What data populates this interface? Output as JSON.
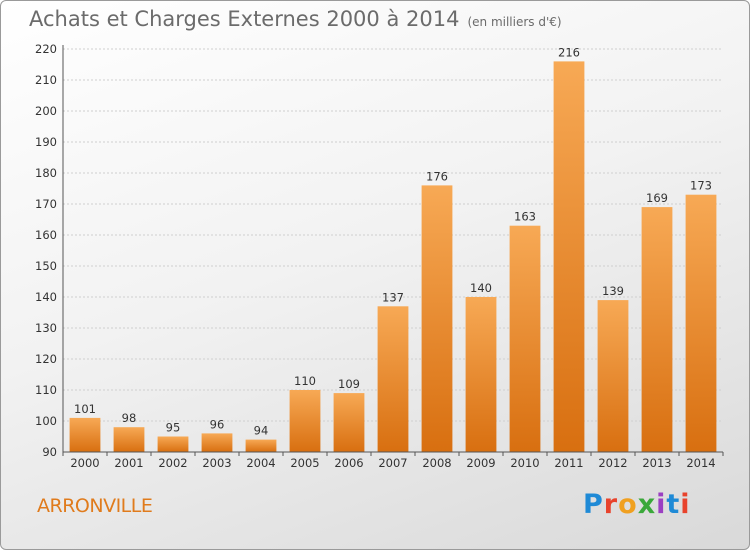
{
  "header": {
    "title": "Achats et Charges Externes 2000 à 2014",
    "subtitle": "(en milliers d'€)"
  },
  "footer": {
    "location": "ARRONVILLE",
    "logo": "Proxiti"
  },
  "colors": {
    "bar_light": "#f7a955",
    "bar_dark": "#d86f10",
    "accent": "#e07b1c"
  },
  "chart_data": {
    "type": "bar",
    "title": "Achats et Charges Externes 2000 à 2014",
    "subtitle": "(en milliers d'€)",
    "categories": [
      "2000",
      "2001",
      "2002",
      "2003",
      "2004",
      "2005",
      "2006",
      "2007",
      "2008",
      "2009",
      "2010",
      "2011",
      "2012",
      "2013",
      "2014"
    ],
    "values": [
      101,
      98,
      95,
      96,
      94,
      110,
      109,
      137,
      176,
      140,
      163,
      216,
      139,
      169,
      173
    ],
    "ylim": [
      90,
      220
    ],
    "yticks": [
      90,
      100,
      110,
      120,
      130,
      140,
      150,
      160,
      170,
      180,
      190,
      200,
      210,
      220
    ],
    "grid": true,
    "data_labels": true
  }
}
